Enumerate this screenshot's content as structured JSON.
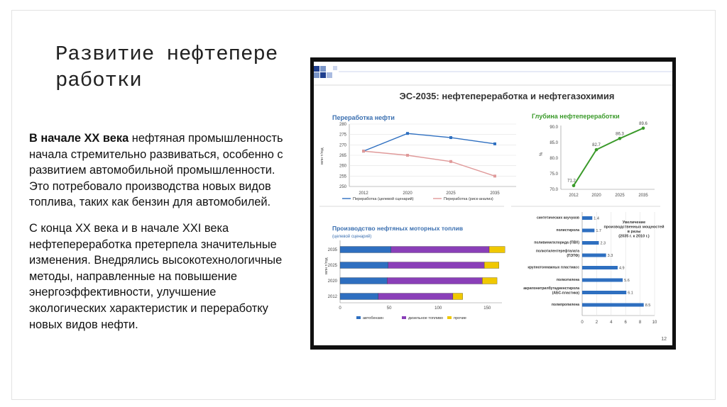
{
  "title": "Развитие нефтепереработки",
  "paragraph1": {
    "bold": "В начале XX века",
    "rest": " нефтяная промышленность начала стремительно развиваться, особенно с развитием автомобильной промышленности. Это потребовало производства новых видов топлива, таких как бензин для автомобилей."
  },
  "paragraph2": "С конца XX века и в начале XXI века нефтепереработка претерпела значительные изменения. Внедрялись высокотехнологичные методы, направленные на повышение энергоэффективности, улучшение экологических характеристик и переработку новых видов нефти.",
  "slide": {
    "title": "ЭС-2035: нефтепереработка и нефтегазохимия",
    "page_number": "12"
  },
  "colors": {
    "blue": "#2e6fc0",
    "pink": "#e09a9a",
    "green": "#3a9a2a",
    "purple": "#8a3fb8",
    "yellow": "#f0c800",
    "title_blue": "#3a6fb0"
  },
  "chart_data": [
    {
      "type": "line",
      "title": "Переработка нефти",
      "ylabel": "млн т/год",
      "x": [
        "2012",
        "2020",
        "2025",
        "2035"
      ],
      "ylim": [
        250,
        280
      ],
      "yticks": [
        "280",
        "275",
        "270",
        "265",
        "260",
        "255",
        "250"
      ],
      "series": [
        {
          "name": "Переработка (целевой сценарий)",
          "values": [
            267,
            275.5,
            273.5,
            270.5
          ]
        },
        {
          "name": "Переработка (риск-анализ)",
          "values": [
            267,
            265,
            262,
            255
          ]
        }
      ]
    },
    {
      "type": "line",
      "title": "Глубина нефтепереработки",
      "ylabel": "%",
      "x": [
        "2012",
        "2020",
        "2025",
        "2035"
      ],
      "ylim": [
        70,
        90
      ],
      "yticks": [
        "90.0",
        "85.0",
        "80.0",
        "75.0",
        "70.0"
      ],
      "series": [
        {
          "values": [
            71.2,
            82.7,
            86.3,
            89.6
          ]
        }
      ],
      "labels": [
        "71.2",
        "82.7",
        "86.3",
        "89.6"
      ]
    },
    {
      "type": "bar",
      "orientation": "horizontal",
      "stacked": true,
      "title": "Производство нефтяных моторных топлив",
      "subtitle": "(целевой сценарий)",
      "ylabel": "млн т/год",
      "categories": [
        "2035",
        "2025",
        "2020",
        "2012"
      ],
      "xlim": [
        0,
        165
      ],
      "xticks": [
        "0",
        "50",
        "100",
        "150"
      ],
      "series": [
        {
          "name": "автобензин",
          "values": [
            52,
            49,
            48,
            39
          ]
        },
        {
          "name": "дизельное топливо",
          "values": [
            100,
            98,
            97,
            76
          ]
        },
        {
          "name": "прочие",
          "values": [
            16,
            15,
            15,
            10
          ]
        }
      ]
    },
    {
      "type": "bar",
      "orientation": "horizontal",
      "annotation": "Увеличение производственных мощностей в разы (2035 г. к 2010 г.)",
      "categories": [
        "синтетических каучуков",
        "полистирола",
        "поливинилхлорида (ПВХ)",
        "полиэтилентерефталата (ПЭТФ)",
        "крупнотоннажных пластмасс",
        "полиэтилена",
        "акрилонитрилбутадиенстирола (АБС-пластика)",
        "полипропилена"
      ],
      "values": [
        1.4,
        1.7,
        2.3,
        3.3,
        4.9,
        5.6,
        6.1,
        8.5
      ],
      "labels": [
        "1.4",
        "1.7",
        "2.3",
        "3.3",
        "4.9",
        "5.6",
        "6.1",
        "8.5"
      ],
      "xlim": [
        0,
        10
      ],
      "xticks": [
        "0",
        "2",
        "4",
        "6",
        "8",
        "10"
      ]
    }
  ]
}
